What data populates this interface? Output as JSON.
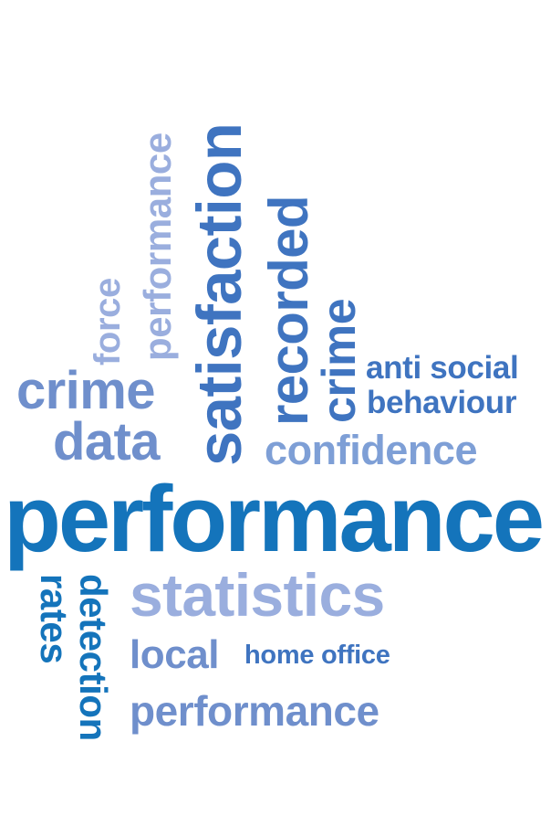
{
  "words": {
    "force": "force",
    "performance_vertical": "performance",
    "satisfaction": "satisfaction",
    "recorded": "recorded",
    "crime_vertical": "crime",
    "anti_social": "anti social",
    "behaviour": "behaviour",
    "crime": "crime",
    "data": "data",
    "confidence": "confidence",
    "performance_main": "performance",
    "statistics": "statistics",
    "local": "local",
    "home_office": "home office",
    "performance_bottom": "performance",
    "detection": "detection",
    "rates": "rates"
  },
  "colors": {
    "dark_blue": "#1474bb",
    "mid_blue": "#3f74c0",
    "medium_light_blue": "#6f8fcc",
    "light_blue": "#7e9fd6",
    "pale_blue": "#9aaede",
    "background": "#ffffff"
  }
}
